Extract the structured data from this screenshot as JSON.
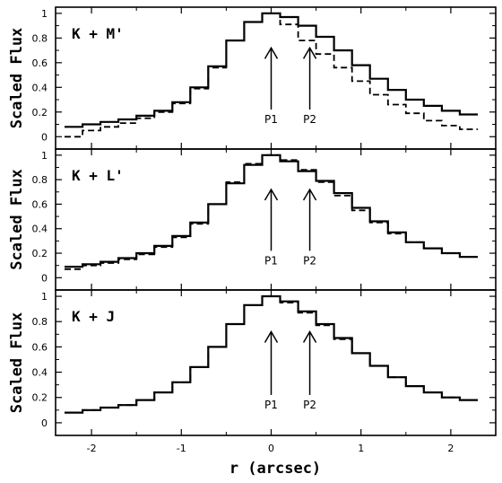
{
  "chart_data": {
    "type": "line",
    "layout": "three stacked panels, shared x axis",
    "xlabel": "r (arcsec)",
    "xlim": [
      -2.4,
      2.5
    ],
    "xticks": [
      -2,
      -1,
      0,
      1,
      2
    ],
    "grid": false,
    "line_style": "step",
    "panels": [
      {
        "title": "K + M'",
        "ylabel": "Scaled Flux",
        "ylim": [
          -0.1,
          1.05
        ],
        "yticks": [
          0,
          0.2,
          0.4,
          0.6,
          0.8,
          1
        ],
        "x": [
          -2.2,
          -2.0,
          -1.8,
          -1.6,
          -1.4,
          -1.2,
          -1.0,
          -0.8,
          -0.6,
          -0.4,
          -0.2,
          0.0,
          0.2,
          0.4,
          0.6,
          0.8,
          1.0,
          1.2,
          1.4,
          1.6,
          1.8,
          2.0,
          2.2
        ],
        "series": [
          {
            "style": "solid",
            "values": [
              0.08,
              0.1,
              0.12,
              0.14,
              0.17,
              0.21,
              0.28,
              0.4,
              0.57,
              0.78,
              0.93,
              1.0,
              0.97,
              0.9,
              0.81,
              0.7,
              0.58,
              0.47,
              0.38,
              0.3,
              0.25,
              0.21,
              0.18
            ]
          },
          {
            "style": "dashed",
            "values": [
              0.0,
              0.05,
              0.08,
              0.11,
              0.15,
              0.2,
              0.27,
              0.39,
              0.56,
              0.78,
              0.93,
              1.0,
              0.91,
              0.78,
              0.67,
              0.56,
              0.45,
              0.34,
              0.26,
              0.19,
              0.13,
              0.09,
              0.06
            ]
          }
        ]
      },
      {
        "title": "K + L'",
        "ylabel": "Scaled Flux",
        "ylim": [
          -0.1,
          1.05
        ],
        "yticks": [
          0,
          0.2,
          0.4,
          0.6,
          0.8,
          1
        ],
        "x": [
          -2.2,
          -2.0,
          -1.8,
          -1.6,
          -1.4,
          -1.2,
          -1.0,
          -0.8,
          -0.6,
          -0.4,
          -0.2,
          0.0,
          0.2,
          0.4,
          0.6,
          0.8,
          1.0,
          1.2,
          1.4,
          1.6,
          1.8,
          2.0,
          2.2
        ],
        "series": [
          {
            "style": "solid",
            "values": [
              0.09,
              0.11,
              0.13,
              0.16,
              0.2,
              0.26,
              0.34,
              0.45,
              0.6,
              0.77,
              0.92,
              1.0,
              0.95,
              0.87,
              0.79,
              0.69,
              0.57,
              0.46,
              0.37,
              0.29,
              0.24,
              0.2,
              0.17
            ]
          },
          {
            "style": "dashed",
            "values": [
              0.07,
              0.1,
              0.12,
              0.15,
              0.19,
              0.25,
              0.33,
              0.44,
              0.6,
              0.78,
              0.93,
              1.0,
              0.96,
              0.88,
              0.78,
              0.67,
              0.55,
              0.45,
              0.36,
              0.29,
              0.24,
              0.2,
              0.17
            ]
          }
        ]
      },
      {
        "title": "K + J",
        "ylabel": "Scaled Flux",
        "ylim": [
          -0.1,
          1.05
        ],
        "yticks": [
          0,
          0.2,
          0.4,
          0.6,
          0.8,
          1
        ],
        "x": [
          -2.2,
          -2.0,
          -1.8,
          -1.6,
          -1.4,
          -1.2,
          -1.0,
          -0.8,
          -0.6,
          -0.4,
          -0.2,
          0.0,
          0.2,
          0.4,
          0.6,
          0.8,
          1.0,
          1.2,
          1.4,
          1.6,
          1.8,
          2.0,
          2.2
        ],
        "series": [
          {
            "style": "solid",
            "values": [
              0.08,
              0.1,
              0.12,
              0.14,
              0.18,
              0.24,
              0.32,
              0.44,
              0.6,
              0.78,
              0.93,
              1.0,
              0.96,
              0.88,
              0.78,
              0.67,
              0.55,
              0.45,
              0.36,
              0.29,
              0.24,
              0.2,
              0.18
            ]
          },
          {
            "style": "dashed",
            "values": [
              0.08,
              0.1,
              0.12,
              0.14,
              0.18,
              0.24,
              0.32,
              0.44,
              0.6,
              0.78,
              0.93,
              1.0,
              0.95,
              0.87,
              0.77,
              0.66,
              0.55,
              0.45,
              0.36,
              0.29,
              0.24,
              0.2,
              0.18
            ]
          }
        ]
      }
    ],
    "annotations": [
      {
        "text": "P1",
        "x": 0.0,
        "marker": "upward arrow"
      },
      {
        "text": "P2",
        "x": 0.43,
        "marker": "upward arrow"
      }
    ]
  }
}
